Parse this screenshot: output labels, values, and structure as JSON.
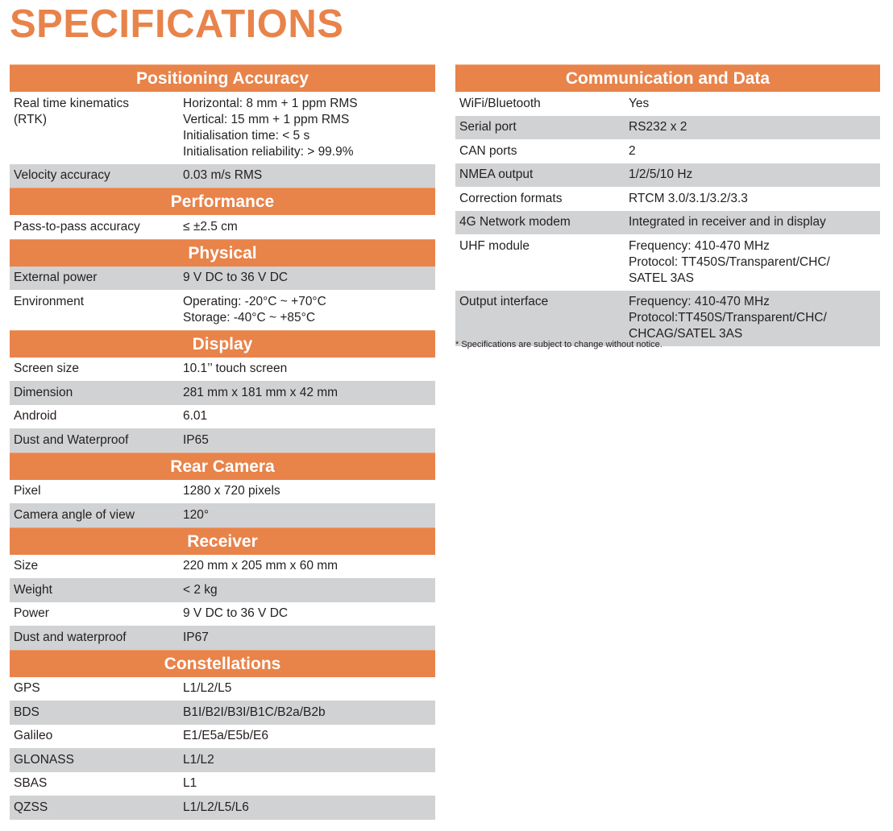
{
  "title": "SPECIFICATIONS",
  "colors": {
    "accent": "#e8834a",
    "row_shade": "#d1d2d4"
  },
  "left_sections": [
    {
      "heading": "Positioning Accuracy",
      "rows": [
        {
          "label": "Real time kinematics (RTK)",
          "values": [
            "Horizontal: 8 mm + 1 ppm RMS",
            "Vertical: 15 mm + 1 ppm RMS",
            "Initialisation time: < 5 s",
            "Initialisation reliability: > 99.9%"
          ]
        },
        {
          "label": "Velocity accuracy",
          "values": [
            "0.03 m/s RMS"
          ]
        }
      ]
    },
    {
      "heading": "Performance",
      "rows": [
        {
          "label": "Pass-to-pass accuracy",
          "values": [
            "≤ ±2.5 cm"
          ]
        }
      ]
    },
    {
      "heading": "Physical",
      "rows": [
        {
          "label": "External power",
          "values": [
            "9 V DC to 36 V DC"
          ]
        },
        {
          "label": "Environment",
          "values": [
            "Operating: -20°C ~ +70°C",
            "Storage: -40°C ~ +85°C"
          ]
        }
      ]
    },
    {
      "heading": "Display",
      "rows": [
        {
          "label": "Screen size",
          "values": [
            "10.1’’ touch screen"
          ]
        },
        {
          "label": "Dimension",
          "values": [
            "281 mm x 181 mm x 42 mm"
          ]
        },
        {
          "label": "Android",
          "values": [
            "6.01"
          ]
        },
        {
          "label": "Dust and Waterproof",
          "values": [
            "IP65"
          ]
        }
      ]
    },
    {
      "heading": "Rear Camera",
      "rows": [
        {
          "label": "Pixel",
          "values": [
            "1280 x 720 pixels"
          ]
        },
        {
          "label": "Camera angle of view",
          "values": [
            "120°"
          ]
        }
      ]
    },
    {
      "heading": "Receiver",
      "rows": [
        {
          "label": "Size",
          "values": [
            "220 mm x 205 mm x 60 mm"
          ]
        },
        {
          "label": "Weight",
          "values": [
            "< 2 kg"
          ]
        },
        {
          "label": "Power",
          "values": [
            "9 V DC to 36 V DC"
          ]
        },
        {
          "label": "Dust and waterproof",
          "values": [
            "IP67"
          ]
        }
      ]
    },
    {
      "heading": "Constellations",
      "rows": [
        {
          "label": "GPS",
          "values": [
            "L1/L2/L5"
          ]
        },
        {
          "label": "BDS",
          "values": [
            "B1I/B2I/B3I/B1C/B2a/B2b"
          ]
        },
        {
          "label": "Galileo",
          "values": [
            "E1/E5a/E5b/E6"
          ]
        },
        {
          "label": "GLONASS",
          "values": [
            "L1/L2"
          ]
        },
        {
          "label": "SBAS",
          "values": [
            "L1"
          ]
        },
        {
          "label": "QZSS",
          "values": [
            "L1/L2/L5/L6"
          ]
        }
      ]
    }
  ],
  "right_sections": [
    {
      "heading": "Communication and Data",
      "rows": [
        {
          "label": "WiFi/Bluetooth",
          "values": [
            "Yes"
          ]
        },
        {
          "label": "Serial port",
          "values": [
            "RS232 x 2"
          ]
        },
        {
          "label": "CAN ports",
          "values": [
            "2"
          ]
        },
        {
          "label": "NMEA output",
          "values": [
            "1/2/5/10 Hz"
          ]
        },
        {
          "label": "Correction formats",
          "values": [
            "RTCM 3.0/3.1/3.2/3.3"
          ]
        },
        {
          "label": "4G Network modem",
          "values": [
            "Integrated in receiver and in display"
          ]
        },
        {
          "label": "UHF module",
          "values": [
            "Frequency: 410-470 MHz",
            "Protocol: TT450S/Transparent/CHC/",
            "SATEL 3AS"
          ]
        },
        {
          "label": "Output interface",
          "values": [
            "Frequency: 410-470 MHz",
            "Protocol:TT450S/Transparent/CHC/",
            "CHCAG/SATEL 3AS"
          ]
        }
      ]
    }
  ],
  "footnote": "* Specifications are subject to change without notice."
}
